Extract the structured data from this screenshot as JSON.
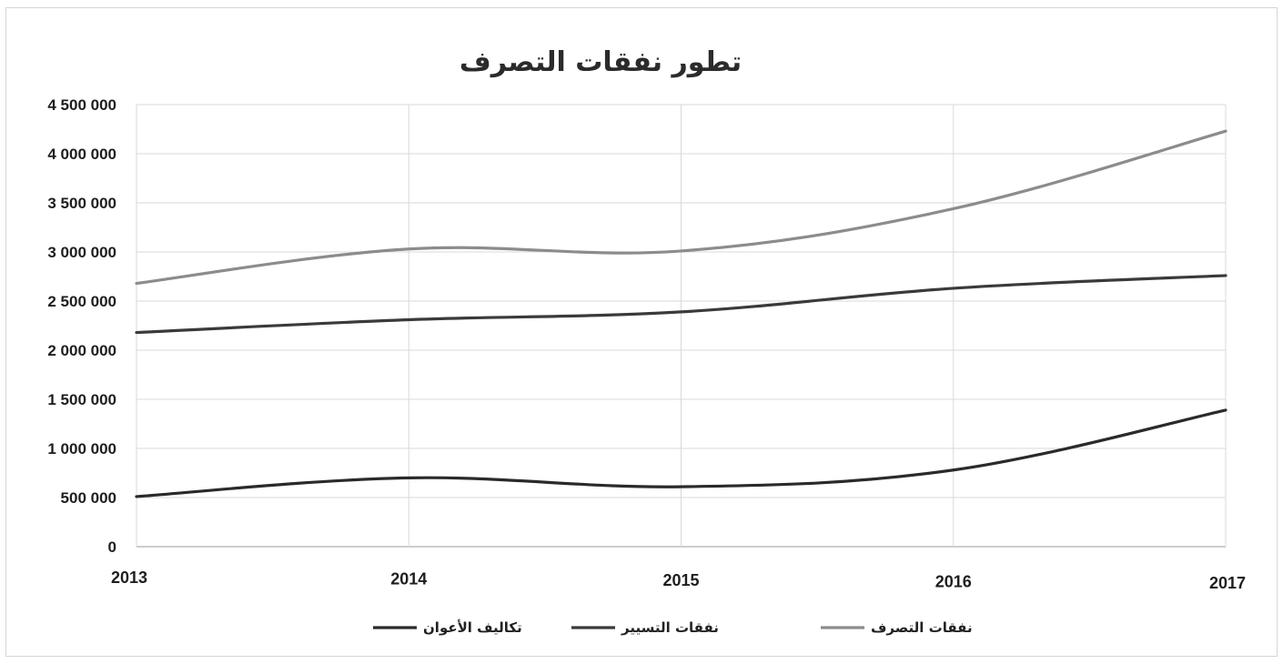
{
  "chart_data": {
    "type": "line",
    "title": "تطور نفقات التصرف",
    "xlabel": "",
    "ylabel": "",
    "x": [
      "2013",
      "2014",
      "2015",
      "2016",
      "2017"
    ],
    "ylim": [
      0,
      4500000
    ],
    "yticks": [
      "0",
      "500 000",
      "1 000 000",
      "1 500 000",
      "2 000 000",
      "2 500 000",
      "3 000 000",
      "3 500 000",
      "4 000 000",
      "4 500 000"
    ],
    "grid": true,
    "smooth": true,
    "legend_position": "bottom",
    "series": [
      {
        "name": "نفقات التصرف",
        "color": "#8c8c8c",
        "values": [
          2680000,
          3030000,
          3010000,
          3440000,
          4230000
        ]
      },
      {
        "name": "نفقات التسيير",
        "color": "#3a3a3a",
        "values": [
          2180000,
          2310000,
          2390000,
          2630000,
          2760000
        ]
      },
      {
        "name": "تكاليف الأعوان",
        "color": "#2a2a2a",
        "values": [
          510000,
          700000,
          610000,
          780000,
          1390000
        ]
      }
    ]
  }
}
